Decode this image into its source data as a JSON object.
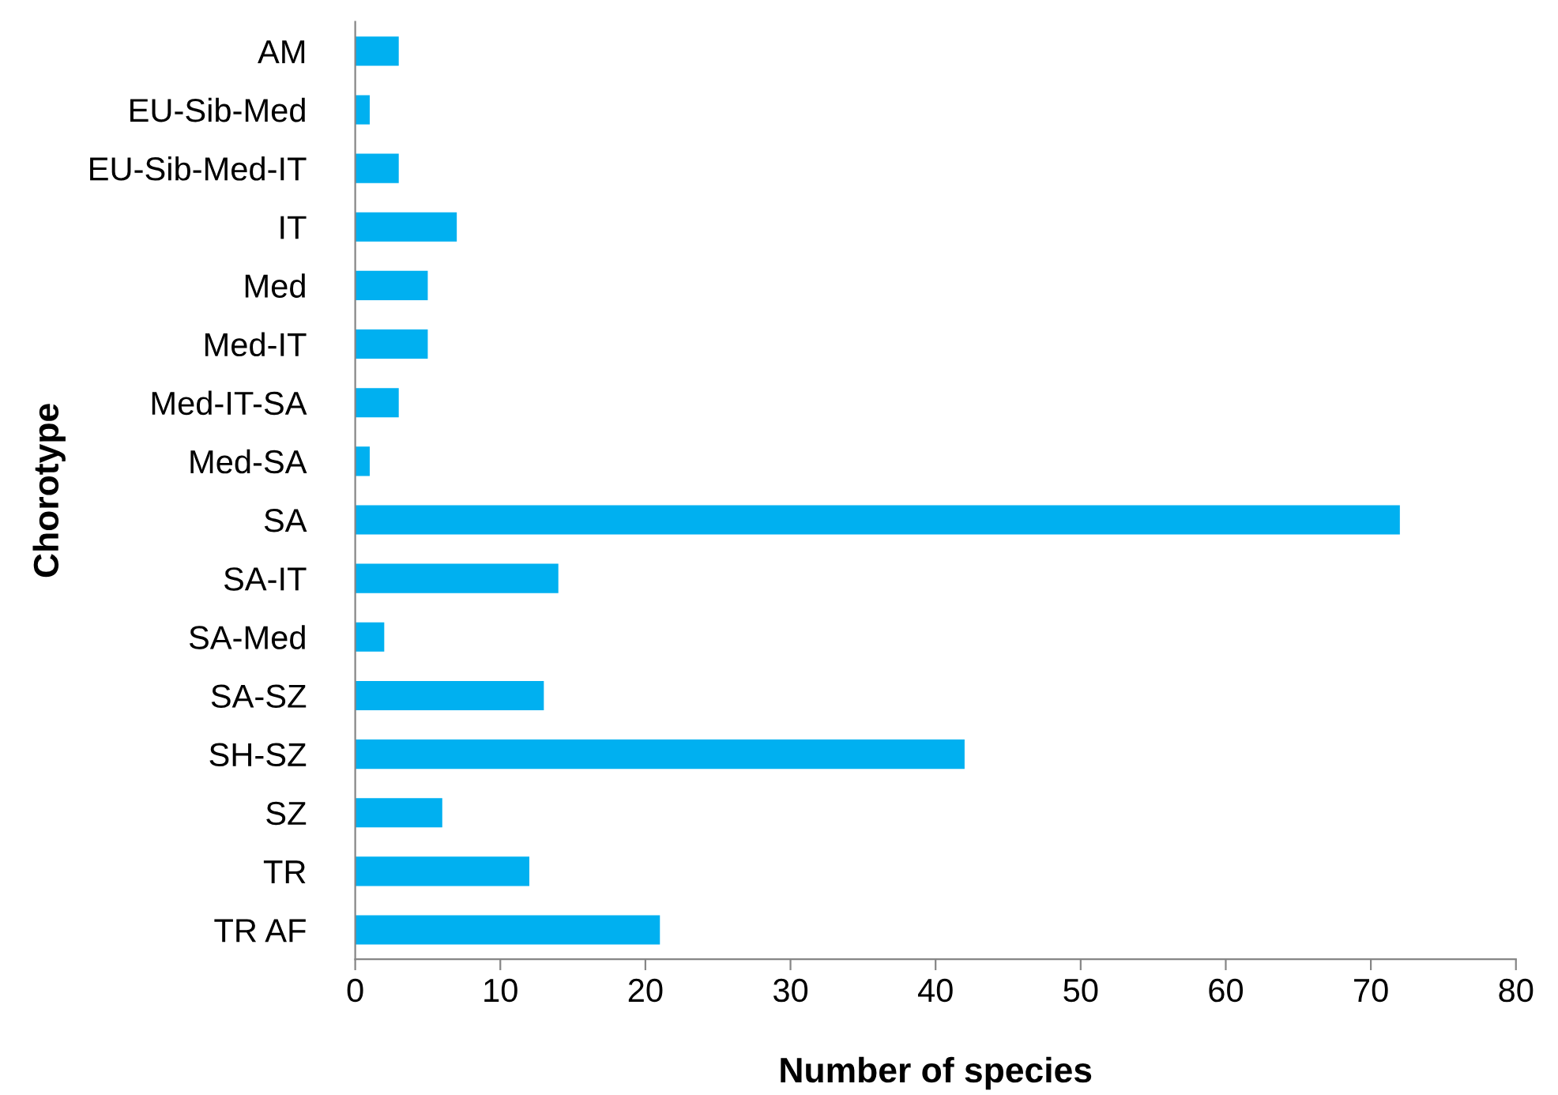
{
  "chart_data": {
    "type": "bar",
    "orientation": "horizontal",
    "xlabel": "Number of species",
    "ylabel": "Chorotype",
    "categories": [
      "AM",
      "EU-Sib-Med",
      "EU-Sib-Med-IT",
      "IT",
      "Med",
      "Med-IT",
      "Med-IT-SA",
      "Med-SA",
      "SA",
      "SA-IT",
      "SA-Med",
      "SA-SZ",
      "SH-SZ",
      "SZ",
      "TR",
      "TR AF"
    ],
    "values": [
      3,
      1,
      3,
      7,
      5,
      5,
      3,
      1,
      72,
      14,
      2,
      13,
      42,
      6,
      12,
      21
    ],
    "color": "#00b0f0",
    "xlim": [
      0,
      80
    ],
    "xticks": [
      0,
      10,
      20,
      30,
      40,
      50,
      60,
      70,
      80
    ],
    "grid": false,
    "legend": false
  }
}
